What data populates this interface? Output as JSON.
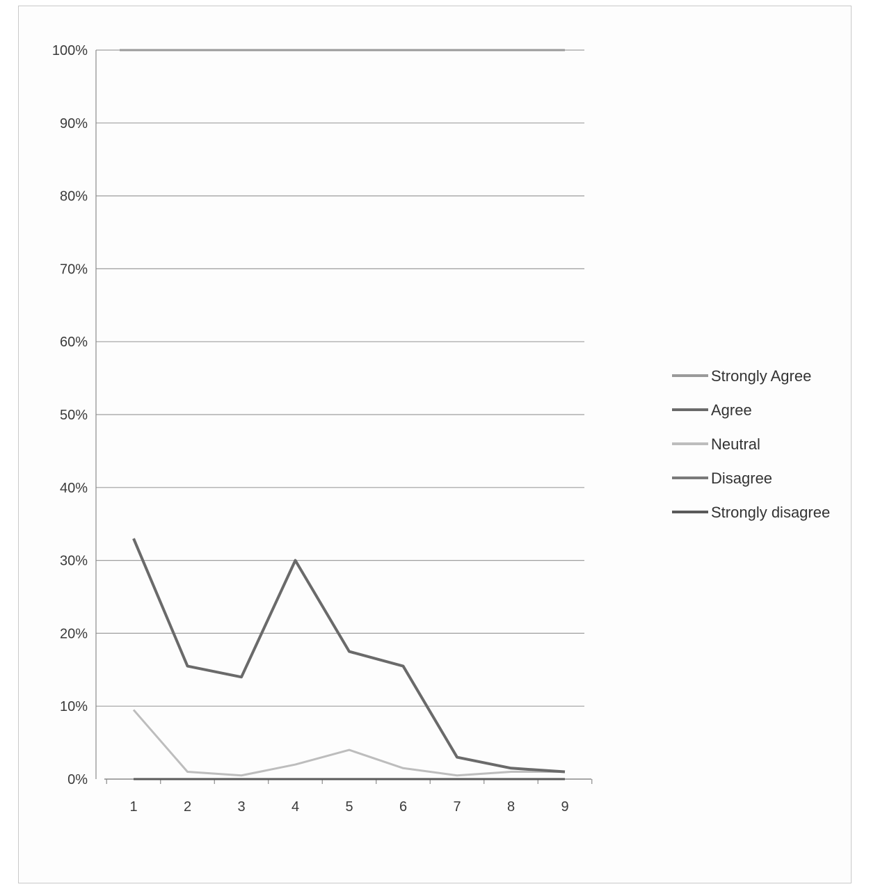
{
  "chart_data": {
    "type": "line",
    "title": "",
    "xlabel": "",
    "ylabel": "",
    "x": [
      1,
      2,
      3,
      4,
      5,
      6,
      7,
      8,
      9
    ],
    "x_tick_labels": [
      "1",
      "2",
      "3",
      "4",
      "5",
      "6",
      "7",
      "8",
      "9"
    ],
    "y_tick_labels": [
      "0%",
      "10%",
      "20%",
      "30%",
      "40%",
      "50%",
      "60%",
      "70%",
      "80%",
      "90%",
      "100%"
    ],
    "ylim": [
      0,
      100
    ],
    "grid": true,
    "legend_position": "right",
    "series": [
      {
        "name": "Strongly Agree",
        "color": "#9a9a9a",
        "values": [
          100,
          100,
          100,
          100,
          100,
          100,
          100,
          100,
          100
        ]
      },
      {
        "name": "Agree",
        "color": "#6a6a6a",
        "values": [
          33,
          15.5,
          14,
          30,
          17.5,
          15.5,
          3,
          1.5,
          1
        ]
      },
      {
        "name": "Neutral",
        "color": "#bdbdbd",
        "values": [
          9.5,
          1,
          0.5,
          2,
          4,
          1.5,
          0.5,
          1,
          1
        ]
      },
      {
        "name": "Disagree",
        "color": "#7a7a7a",
        "values": [
          0,
          0,
          0,
          0,
          0,
          0,
          0,
          0,
          0
        ]
      },
      {
        "name": "Strongly disagree",
        "color": "#5a5a5a",
        "values": [
          0,
          0,
          0,
          0,
          0,
          0,
          0,
          0,
          0
        ]
      }
    ]
  }
}
